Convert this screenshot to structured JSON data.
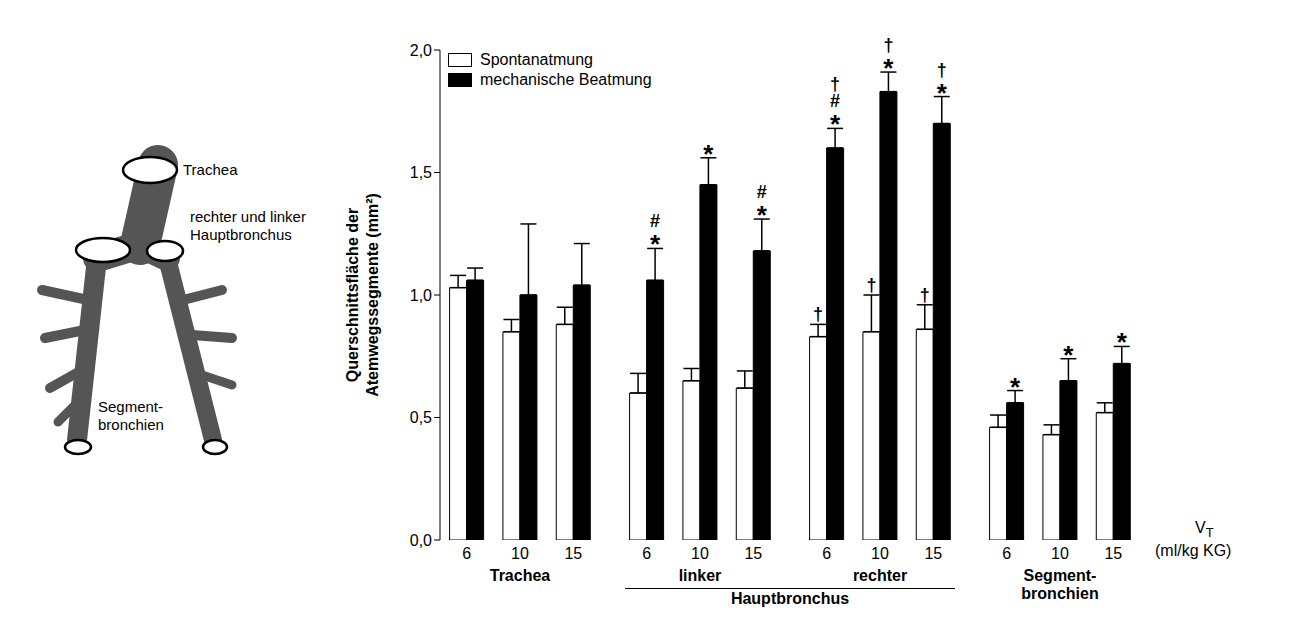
{
  "chart_data": {
    "type": "bar",
    "y_label": "Querschnittsfläche der Atemwegssegmente (mm²)",
    "x_label": {
      "symbol": "V",
      "subscript": "T",
      "unit": "(ml/kg KG)"
    },
    "ylim": [
      0,
      2
    ],
    "yticks": [
      {
        "value": 0,
        "label": "0,0"
      },
      {
        "value": 0.5,
        "label": "0,5"
      },
      {
        "value": 1,
        "label": "1,0"
      },
      {
        "value": 1.5,
        "label": "1,5"
      },
      {
        "value": 2,
        "label": "2,0"
      }
    ],
    "grid": false,
    "legend": "upper left",
    "series": [
      {
        "name": "Spontanatmung",
        "color": "#ffffff"
      },
      {
        "name": "mechanische Beatmung",
        "color": "#000000"
      }
    ],
    "groups": [
      {
        "label": "Trachea",
        "categories": [
          "6",
          "10",
          "15"
        ],
        "values": [
          [
            1.03,
            0.85,
            0.88
          ],
          [
            1.06,
            1.0,
            1.04
          ]
        ],
        "errors": [
          [
            0.05,
            0.05,
            0.07
          ],
          [
            0.05,
            0.29,
            0.17
          ]
        ],
        "significance": [
          [
            [],
            [],
            []
          ],
          [
            [],
            [],
            []
          ]
        ]
      },
      {
        "label": "linker",
        "parent": "Hauptbronchus",
        "categories": [
          "6",
          "10",
          "15"
        ],
        "values": [
          [
            0.6,
            0.65,
            0.62
          ],
          [
            1.06,
            1.45,
            1.18
          ]
        ],
        "errors": [
          [
            0.08,
            0.05,
            0.07
          ],
          [
            0.13,
            0.11,
            0.13
          ]
        ],
        "significance": [
          [
            [],
            [],
            []
          ],
          [
            [
              "#",
              "*"
            ],
            [
              "*"
            ],
            [
              "#",
              "*"
            ]
          ]
        ]
      },
      {
        "label": "rechter",
        "parent": "Hauptbronchus",
        "categories": [
          "6",
          "10",
          "15"
        ],
        "values": [
          [
            0.83,
            0.85,
            0.86
          ],
          [
            1.6,
            1.83,
            1.7
          ]
        ],
        "errors": [
          [
            0.05,
            0.15,
            0.1
          ],
          [
            0.08,
            0.08,
            0.11
          ]
        ],
        "significance": [
          [
            [
              "†"
            ],
            [
              "†"
            ],
            [
              "†"
            ]
          ],
          [
            [
              "†",
              "#",
              "*"
            ],
            [
              "†",
              "*"
            ],
            [
              "†",
              "*"
            ]
          ]
        ]
      },
      {
        "label": "Segment-bronchien",
        "categories": [
          "6",
          "10",
          "15"
        ],
        "values": [
          [
            0.46,
            0.43,
            0.52
          ],
          [
            0.56,
            0.65,
            0.72
          ]
        ],
        "errors": [
          [
            0.05,
            0.04,
            0.04
          ],
          [
            0.05,
            0.09,
            0.07
          ]
        ],
        "significance": [
          [
            [],
            [],
            []
          ],
          [
            [
              "*"
            ],
            [
              "*"
            ],
            [
              "*"
            ]
          ]
        ]
      }
    ]
  },
  "diagram": {
    "labels": {
      "trachea": "Trachea",
      "main_bronchi": "rechter und linker Hauptbronchus",
      "segmental": "Segment-bronchien"
    }
  }
}
